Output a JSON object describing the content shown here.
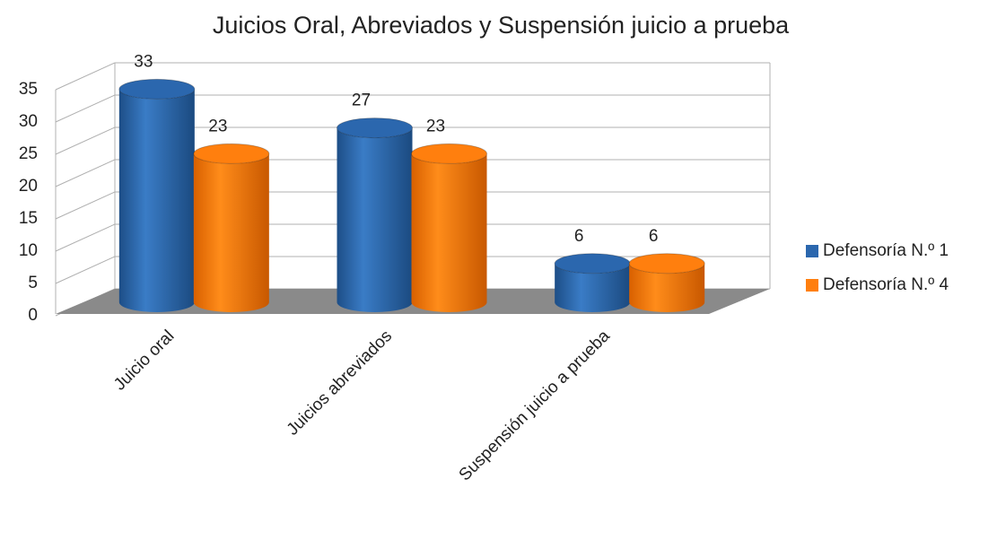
{
  "chart_data": {
    "type": "bar3d",
    "title": "Juicios Oral, Abreviados y Suspensión juicio a prueba",
    "categories": [
      "Juicio oral",
      "Juicios abreviados",
      "Suspensión juicio a prueba"
    ],
    "series": [
      {
        "name": "Defensoría N.º 1",
        "color": "#2b67ae",
        "values": [
          33,
          27,
          6
        ]
      },
      {
        "name": "Defensoría N.º 4",
        "color": "#ff7f0e",
        "values": [
          23,
          23,
          6
        ]
      }
    ],
    "ylim": [
      0,
      35
    ],
    "yticks": [
      0,
      5,
      10,
      15,
      20,
      25,
      30,
      35
    ],
    "grid": true,
    "legend": "right"
  }
}
